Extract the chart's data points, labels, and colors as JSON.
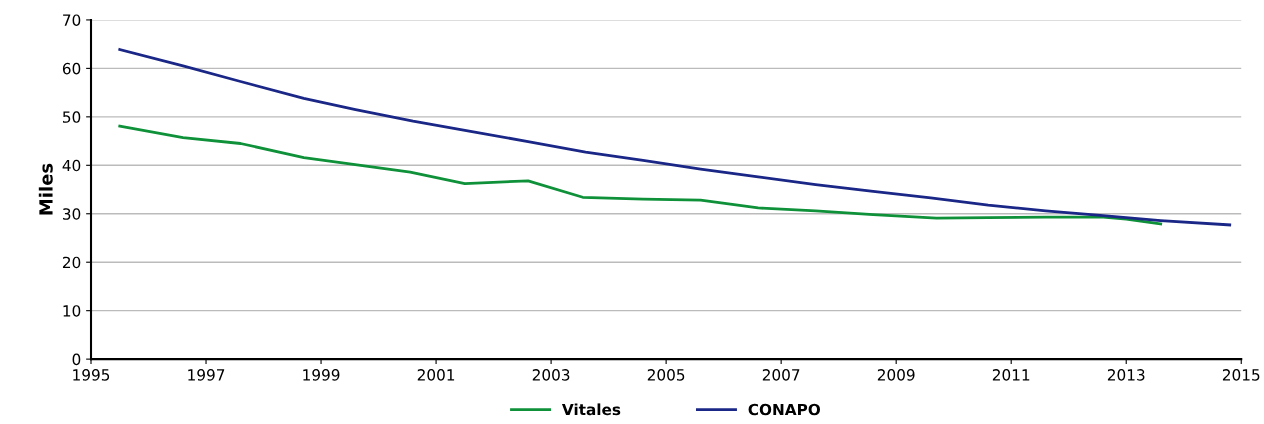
{
  "chart_data": {
    "type": "line",
    "ylabel": "Miles",
    "series": [
      {
        "name": "Vitales",
        "color": "#0e9139",
        "x": [
          1995.5,
          1996.6,
          1997.6,
          1998.7,
          2000.55,
          2001.5,
          2002.6,
          2003.55,
          2004.6,
          2005.6,
          2006.6,
          2007.6,
          2008.6,
          2009.7,
          2010.6,
          2011.6,
          2012.6,
          2013.0,
          2013.6
        ],
        "values": [
          48.1,
          45.7,
          44.5,
          41.6,
          38.6,
          36.2,
          36.8,
          33.4,
          33.0,
          32.8,
          31.2,
          30.6,
          29.8,
          29.1,
          29.2,
          29.3,
          29.3,
          28.9,
          27.9
        ]
      },
      {
        "name": "CONAPO",
        "color": "#1a2787",
        "x": [
          1995.5,
          1996.6,
          1997.6,
          1998.7,
          1999.6,
          2000.6,
          2001.6,
          2002.6,
          2003.6,
          2004.6,
          2005.6,
          2006.6,
          2007.6,
          2008.6,
          2009.6,
          2010.6,
          2011.6,
          2012.6,
          2013.6,
          2014.8
        ],
        "values": [
          63.9,
          60.5,
          57.3,
          53.8,
          51.5,
          49.1,
          47.0,
          44.9,
          42.7,
          41.0,
          39.2,
          37.6,
          36.0,
          34.6,
          33.3,
          31.8,
          30.6,
          29.6,
          28.6,
          27.7
        ]
      }
    ],
    "xlim": [
      1995,
      2015
    ],
    "xticks": [
      1995,
      1997,
      1999,
      2001,
      2003,
      2005,
      2007,
      2009,
      2011,
      2013,
      2015
    ],
    "ylim": [
      0,
      70
    ],
    "yticks": [
      0,
      10,
      20,
      30,
      40,
      50,
      60,
      70
    ],
    "grid": "y",
    "legend": "bottom",
    "marker": "none",
    "line_style": "solid"
  }
}
